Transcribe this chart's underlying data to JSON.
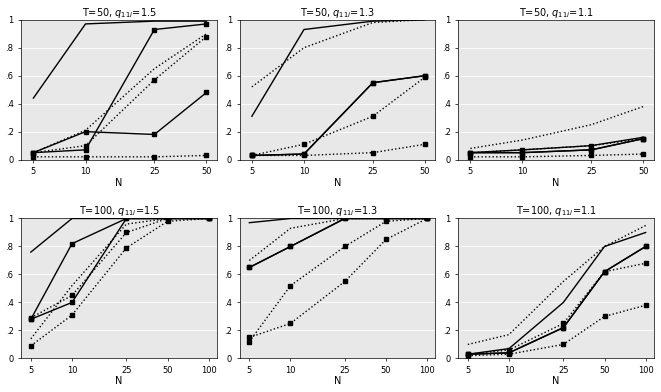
{
  "panels": [
    {
      "title": "T=50, q_{11i}=1.5",
      "N": [
        5,
        10,
        25,
        50
      ],
      "lines": [
        {
          "y": [
            0.44,
            0.97,
            0.99,
            0.99
          ],
          "style": "solid",
          "marker": null
        },
        {
          "y": [
            0.05,
            0.07,
            0.93,
            0.97
          ],
          "style": "solid",
          "marker": "s"
        },
        {
          "y": [
            0.05,
            0.2,
            0.18,
            0.48
          ],
          "style": "solid",
          "marker": "s"
        },
        {
          "y": [
            0.05,
            0.21,
            0.65,
            0.9
          ],
          "style": "dotted",
          "marker": null
        },
        {
          "y": [
            0.05,
            0.1,
            0.57,
            0.88
          ],
          "style": "dotted",
          "marker": "s"
        },
        {
          "y": [
            0.02,
            0.02,
            0.02,
            0.03
          ],
          "style": "dotted",
          "marker": "s"
        }
      ],
      "xlim_log": true,
      "N_range": [
        5,
        50
      ],
      "ylim": [
        0,
        1.0
      ],
      "yticks": [
        0,
        0.2,
        0.4,
        0.6,
        0.8,
        1.0
      ],
      "xticks": [
        5,
        10,
        25,
        50
      ],
      "xlabel": "N"
    },
    {
      "title": "T=50, q_{11i}=1.3",
      "N": [
        5,
        10,
        25,
        50
      ],
      "lines": [
        {
          "y": [
            0.31,
            0.93,
            0.99,
            1.0
          ],
          "style": "solid",
          "marker": null
        },
        {
          "y": [
            0.03,
            0.04,
            0.55,
            0.6
          ],
          "style": "solid",
          "marker": "s"
        },
        {
          "y": [
            0.03,
            0.04,
            0.55,
            0.6
          ],
          "style": "solid",
          "marker": "s"
        },
        {
          "y": [
            0.52,
            0.8,
            0.98,
            1.0
          ],
          "style": "dotted",
          "marker": null
        },
        {
          "y": [
            0.03,
            0.11,
            0.31,
            0.59
          ],
          "style": "dotted",
          "marker": "s"
        },
        {
          "y": [
            0.03,
            0.03,
            0.05,
            0.11
          ],
          "style": "dotted",
          "marker": "s"
        }
      ],
      "xlim_log": true,
      "N_range": [
        5,
        50
      ],
      "ylim": [
        0,
        1.0
      ],
      "yticks": [
        0,
        0.2,
        0.4,
        0.6,
        0.8,
        1.0
      ],
      "xticks": [
        5,
        10,
        25,
        50
      ],
      "xlabel": "N"
    },
    {
      "title": "T=50, q_{11i}=1.1",
      "N": [
        5,
        10,
        25,
        50
      ],
      "lines": [
        {
          "y": [
            0.05,
            0.07,
            0.1,
            0.16
          ],
          "style": "solid",
          "marker": null
        },
        {
          "y": [
            0.05,
            0.05,
            0.07,
            0.15
          ],
          "style": "solid",
          "marker": "s"
        },
        {
          "y": [
            0.05,
            0.05,
            0.07,
            0.15
          ],
          "style": "solid",
          "marker": "s"
        },
        {
          "y": [
            0.08,
            0.14,
            0.25,
            0.38
          ],
          "style": "dotted",
          "marker": null
        },
        {
          "y": [
            0.05,
            0.07,
            0.1,
            0.15
          ],
          "style": "dotted",
          "marker": "s"
        },
        {
          "y": [
            0.02,
            0.02,
            0.03,
            0.04
          ],
          "style": "dotted",
          "marker": "s"
        }
      ],
      "xlim_log": true,
      "N_range": [
        5,
        50
      ],
      "ylim": [
        0,
        1.0
      ],
      "yticks": [
        0.0,
        0.2,
        0.4,
        0.6,
        0.8,
        1.0
      ],
      "xticks": [
        5,
        10,
        25,
        50
      ],
      "xlabel": "N"
    },
    {
      "title": "T=100, q_{11i}=1.5",
      "N": [
        5,
        10,
        25,
        50,
        100
      ],
      "lines": [
        {
          "y": [
            0.76,
            1.0,
            1.0,
            1.0,
            1.0
          ],
          "style": "solid",
          "marker": null
        },
        {
          "y": [
            0.28,
            0.82,
            1.0,
            1.0,
            1.0
          ],
          "style": "solid",
          "marker": "s"
        },
        {
          "y": [
            0.28,
            0.4,
            1.0,
            1.0,
            1.0
          ],
          "style": "solid",
          "marker": "s"
        },
        {
          "y": [
            0.14,
            0.52,
            0.96,
            1.0,
            1.0
          ],
          "style": "dotted",
          "marker": null
        },
        {
          "y": [
            0.09,
            0.31,
            0.79,
            0.98,
            1.0
          ],
          "style": "dotted",
          "marker": "s"
        },
        {
          "y": [
            0.29,
            0.45,
            0.9,
            1.0,
            1.0
          ],
          "style": "dotted",
          "marker": "s"
        }
      ],
      "xlim_log": true,
      "N_range": [
        5,
        100
      ],
      "ylim": [
        0,
        1.0
      ],
      "yticks": [
        0,
        0.2,
        0.4,
        0.6,
        0.8,
        1.0
      ],
      "xticks": [
        5,
        10,
        25,
        50,
        100
      ],
      "xlabel": "N"
    },
    {
      "title": "T=100, q_{11i}=1.3",
      "N": [
        5,
        10,
        25,
        50,
        100
      ],
      "lines": [
        {
          "y": [
            0.97,
            1.0,
            1.0,
            1.0,
            1.0
          ],
          "style": "solid",
          "marker": null
        },
        {
          "y": [
            0.65,
            0.8,
            1.0,
            1.0,
            1.0
          ],
          "style": "solid",
          "marker": "s"
        },
        {
          "y": [
            0.65,
            0.8,
            1.0,
            1.0,
            1.0
          ],
          "style": "solid",
          "marker": "s"
        },
        {
          "y": [
            0.7,
            0.93,
            1.0,
            1.0,
            1.0
          ],
          "style": "dotted",
          "marker": null
        },
        {
          "y": [
            0.12,
            0.52,
            0.8,
            0.98,
            1.0
          ],
          "style": "dotted",
          "marker": "s"
        },
        {
          "y": [
            0.15,
            0.25,
            0.55,
            0.85,
            1.0
          ],
          "style": "dotted",
          "marker": "s"
        }
      ],
      "xlim_log": true,
      "N_range": [
        5,
        100
      ],
      "ylim": [
        0,
        1.0
      ],
      "yticks": [
        0,
        0.2,
        0.4,
        0.6,
        0.8,
        1.0
      ],
      "xticks": [
        5,
        10,
        25,
        50,
        100
      ],
      "xlabel": "N"
    },
    {
      "title": "T=100, q_{11i}=1.1",
      "N": [
        5,
        10,
        25,
        50,
        100
      ],
      "lines": [
        {
          "y": [
            0.03,
            0.07,
            0.4,
            0.8,
            0.9
          ],
          "style": "solid",
          "marker": null
        },
        {
          "y": [
            0.03,
            0.04,
            0.22,
            0.62,
            0.8
          ],
          "style": "solid",
          "marker": "s"
        },
        {
          "y": [
            0.03,
            0.04,
            0.22,
            0.62,
            0.8
          ],
          "style": "solid",
          "marker": "s"
        },
        {
          "y": [
            0.1,
            0.17,
            0.55,
            0.8,
            0.95
          ],
          "style": "dotted",
          "marker": null
        },
        {
          "y": [
            0.03,
            0.06,
            0.25,
            0.62,
            0.68
          ],
          "style": "dotted",
          "marker": "s"
        },
        {
          "y": [
            0.02,
            0.03,
            0.1,
            0.3,
            0.38
          ],
          "style": "dotted",
          "marker": "s"
        }
      ],
      "xlim_log": true,
      "N_range": [
        5,
        100
      ],
      "ylim": [
        0,
        1.0
      ],
      "yticks": [
        0.0,
        0.2,
        0.4,
        0.6,
        0.8,
        1.0
      ],
      "xticks": [
        5,
        10,
        25,
        50,
        100
      ],
      "xlabel": "N"
    }
  ],
  "bg_color": "#e8e8e8",
  "title_fontsize": 7,
  "tick_fontsize": 6,
  "label_fontsize": 7
}
